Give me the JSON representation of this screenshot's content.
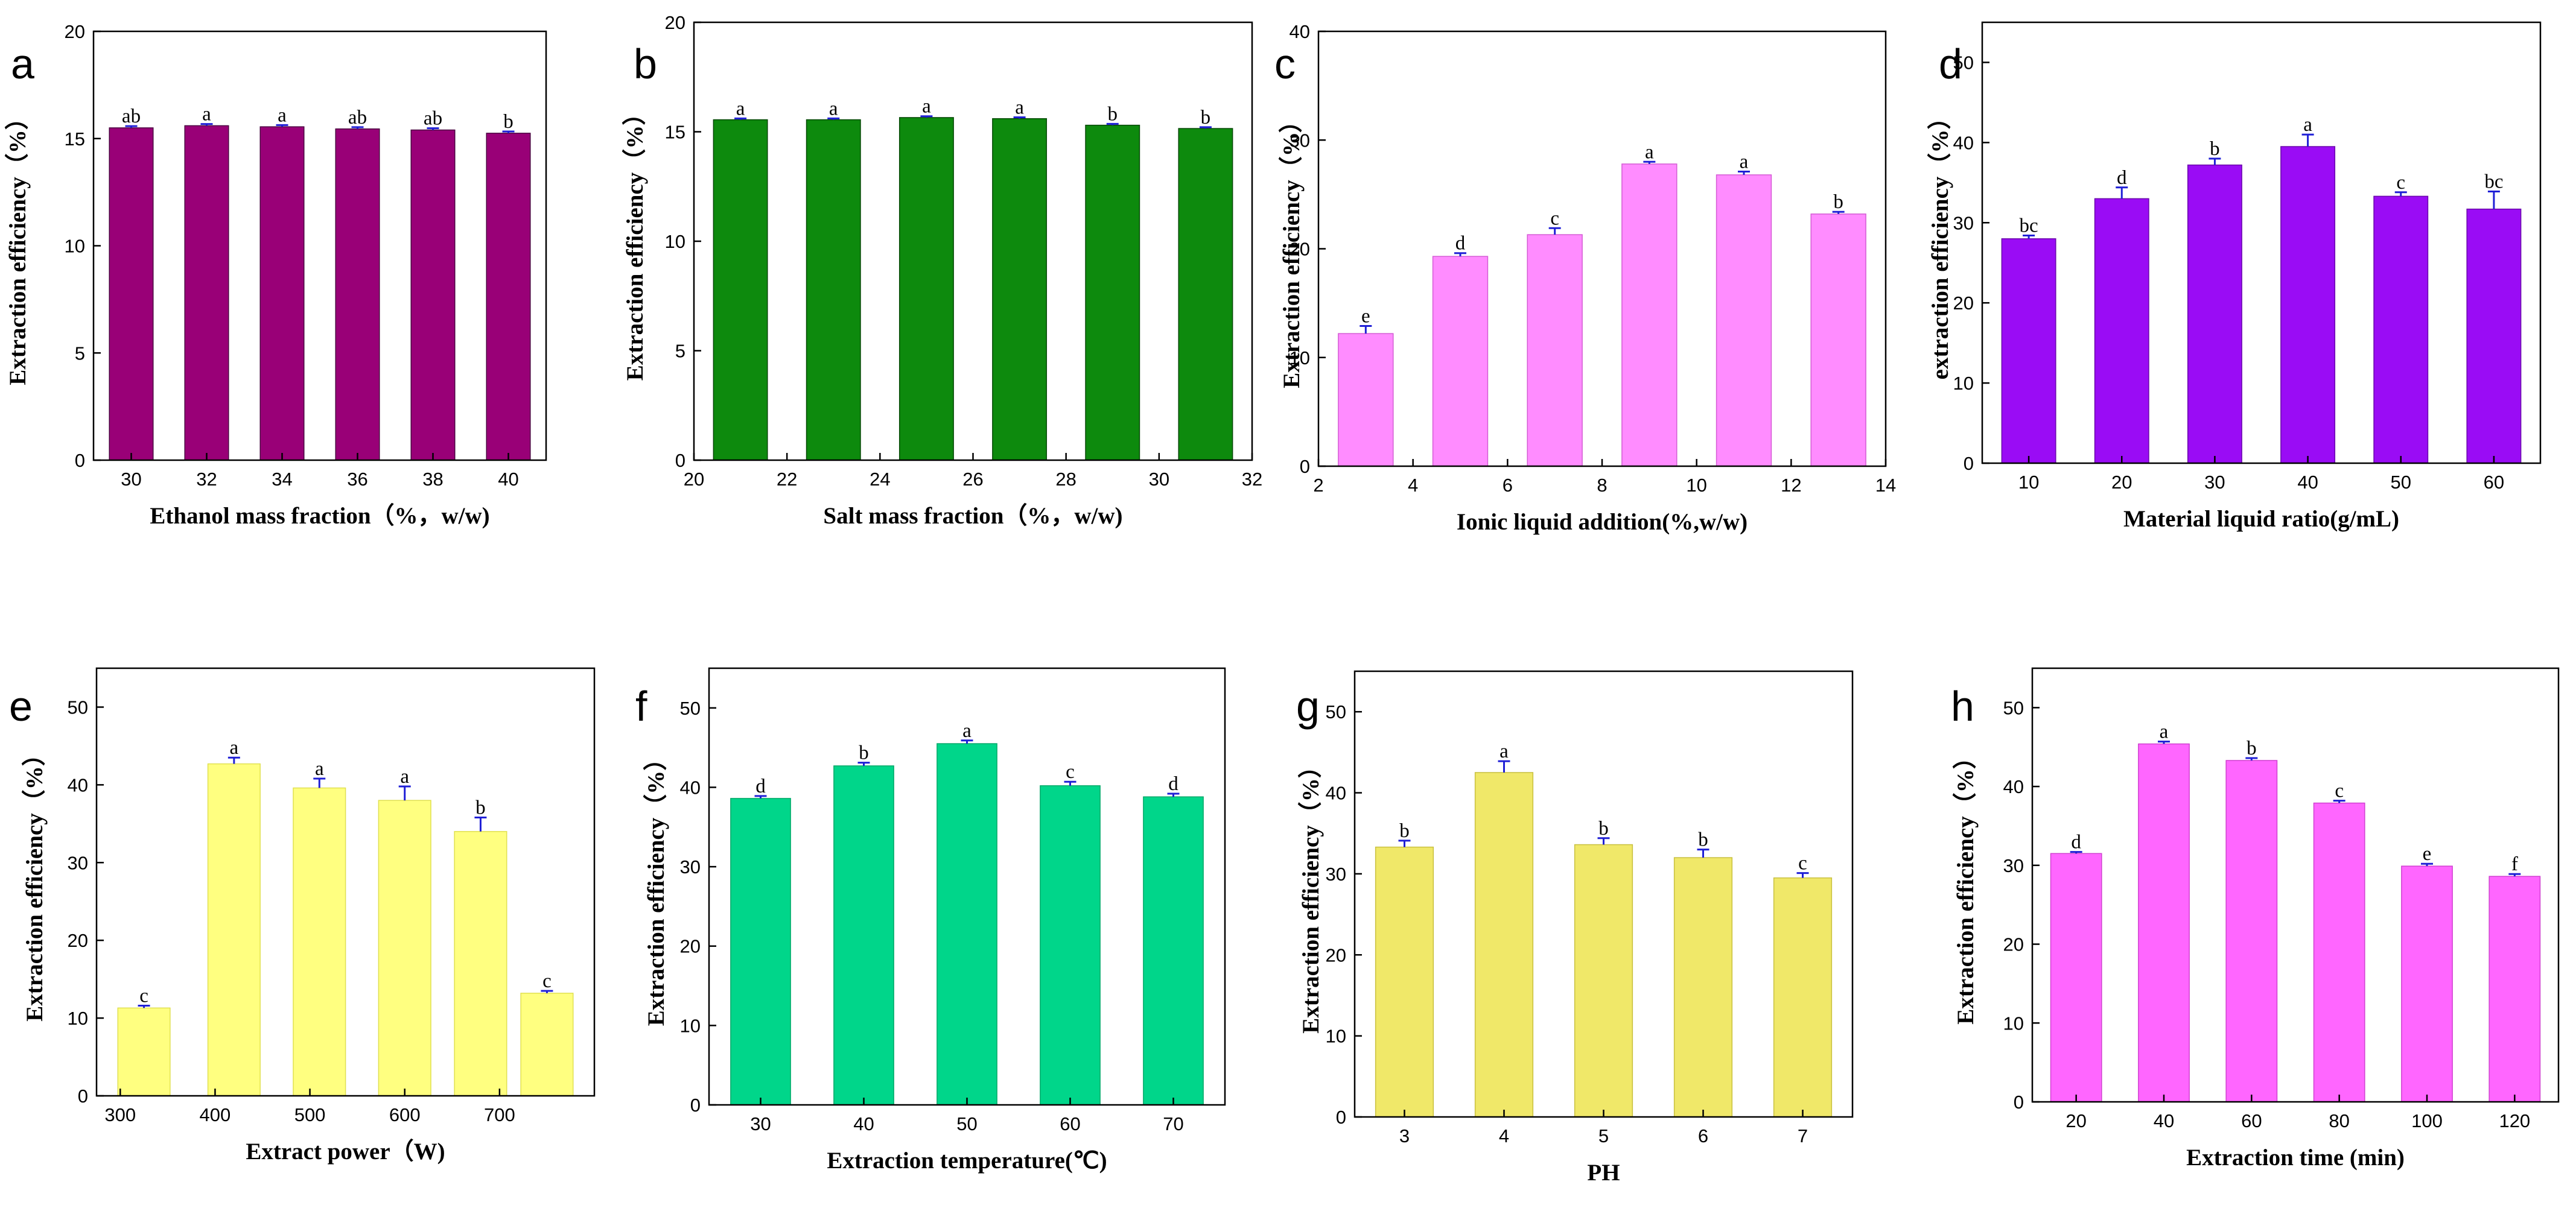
{
  "chart_data": [
    {
      "panel": "a",
      "type": "bar",
      "title": "",
      "xlabel": "Ethanol mass fraction（%，w/w)",
      "ylabel": "Extraction efficiency（%）",
      "x_mode": "categorical",
      "categories": [
        "30",
        "32",
        "34",
        "36",
        "38",
        "40"
      ],
      "values": [
        15.5,
        15.6,
        15.55,
        15.45,
        15.4,
        15.25
      ],
      "errors": [
        0.08,
        0.08,
        0.08,
        0.08,
        0.08,
        0.08
      ],
      "letters": [
        "ab",
        "a",
        "a",
        "ab",
        "ab",
        "b"
      ],
      "ylim": [
        0,
        20
      ],
      "yticks": [
        "0",
        "5",
        "10",
        "15",
        "20"
      ],
      "color": "#990077",
      "edge": "#4a0040"
    },
    {
      "panel": "b",
      "type": "bar",
      "title": "",
      "xlabel": "Salt mass fraction（%，w/w)",
      "ylabel": "Extraction efficiency（%）",
      "x_mode": "numeric",
      "x": [
        21,
        23,
        25,
        27,
        29,
        31
      ],
      "xlim": [
        20,
        32
      ],
      "xticks": [
        "20",
        "22",
        "24",
        "26",
        "28",
        "30",
        "32"
      ],
      "values": [
        15.55,
        15.55,
        15.65,
        15.6,
        15.3,
        15.15
      ],
      "errors": [
        0.06,
        0.06,
        0.06,
        0.06,
        0.06,
        0.06
      ],
      "letters": [
        "a",
        "a",
        "a",
        "a",
        "b",
        "b"
      ],
      "ylim": [
        0,
        20
      ],
      "yticks": [
        "0",
        "5",
        "10",
        "15",
        "20"
      ],
      "color": "#0d8a0d",
      "edge": "#064806"
    },
    {
      "panel": "c",
      "type": "bar",
      "title": "",
      "xlabel": "Ionic liquid addition(%,w/w)",
      "ylabel": "Extraction efficiency（%）",
      "x_mode": "numeric",
      "x": [
        3,
        5,
        7,
        9,
        11,
        13
      ],
      "xlim": [
        2,
        14
      ],
      "xticks": [
        "2",
        "4",
        "6",
        "8",
        "10",
        "12",
        "14"
      ],
      "values": [
        12.2,
        19.3,
        21.3,
        27.8,
        26.8,
        23.2
      ],
      "errors": [
        0.7,
        0.3,
        0.6,
        0.2,
        0.3,
        0.2
      ],
      "letters": [
        "e",
        "d",
        "c",
        "a",
        "a",
        "b"
      ],
      "ylim": [
        0,
        40
      ],
      "yticks": [
        "0",
        "10",
        "20",
        "30",
        "40"
      ],
      "color": "#ff8cff",
      "edge": "#d45cd4"
    },
    {
      "panel": "d",
      "type": "bar",
      "title": "",
      "xlabel": "Material liquid ratio(g/mL)",
      "ylabel": "extraction efficiency（%）",
      "x_mode": "categorical",
      "categories": [
        "10",
        "20",
        "30",
        "40",
        "50",
        "60"
      ],
      "values": [
        28.0,
        33.0,
        37.2,
        39.5,
        33.3,
        31.7
      ],
      "errors": [
        0.4,
        1.4,
        0.8,
        1.5,
        0.5,
        2.2
      ],
      "letters": [
        "bc",
        "d",
        "b",
        "a",
        "c",
        "bc"
      ],
      "ylim": [
        0,
        55
      ],
      "yticks": [
        "0",
        "10",
        "20",
        "30",
        "40",
        "50"
      ],
      "color": "#9a0cf5",
      "edge": "#6a08aa"
    },
    {
      "panel": "e",
      "type": "bar",
      "title": "",
      "xlabel": "Extract power（W)",
      "ylabel": "Extraction efficiency（%）",
      "x_mode": "numeric",
      "x": [
        325,
        420,
        510,
        600,
        680,
        750
      ],
      "xlim": [
        275,
        800
      ],
      "xticks_at": [
        300,
        400,
        500,
        600,
        700
      ],
      "xticks": [
        "300",
        "400",
        "500",
        "600",
        "700"
      ],
      "values": [
        11.3,
        42.7,
        39.6,
        38.0,
        34.0,
        13.2
      ],
      "errors": [
        0.3,
        0.8,
        1.2,
        1.8,
        1.8,
        0.3
      ],
      "letters": [
        "c",
        "a",
        "a",
        "a",
        "b",
        "c"
      ],
      "ylim": [
        0,
        55
      ],
      "yticks": [
        "0",
        "10",
        "20",
        "30",
        "40",
        "50"
      ],
      "color": "#ffff80",
      "edge": "#e0e050"
    },
    {
      "panel": "f",
      "type": "bar",
      "title": "",
      "xlabel": "Extraction temperature(℃)",
      "ylabel": "Extraction efficiency（%）",
      "x_mode": "categorical",
      "categories": [
        "30",
        "40",
        "50",
        "60",
        "70"
      ],
      "values": [
        38.6,
        42.7,
        45.5,
        40.2,
        38.8
      ],
      "errors": [
        0.3,
        0.4,
        0.4,
        0.5,
        0.4
      ],
      "letters": [
        "d",
        "b",
        "a",
        "c",
        "d"
      ],
      "ylim": [
        0,
        55
      ],
      "yticks": [
        "0",
        "10",
        "20",
        "30",
        "40",
        "50"
      ],
      "color": "#00d68a",
      "edge": "#00a868"
    },
    {
      "panel": "g",
      "type": "bar",
      "title": "",
      "xlabel": "PH",
      "ylabel": "Extraction efficiency（%）",
      "x_mode": "categorical",
      "categories": [
        "3",
        "4",
        "5",
        "6",
        "7"
      ],
      "values": [
        33.3,
        42.5,
        33.6,
        32.0,
        29.5
      ],
      "errors": [
        0.8,
        1.4,
        0.8,
        1.0,
        0.6
      ],
      "letters": [
        "b",
        "a",
        "b",
        "b",
        "c"
      ],
      "ylim": [
        0,
        55
      ],
      "yticks": [
        "0",
        "10",
        "20",
        "30",
        "40",
        "50"
      ],
      "color": "#f0e869",
      "edge": "#c8c040"
    },
    {
      "panel": "h",
      "type": "bar",
      "title": "",
      "xlabel": "Extraction time (min)",
      "ylabel": "Extraction efficiency（%）",
      "x_mode": "categorical",
      "categories": [
        "20",
        "40",
        "60",
        "80",
        "100",
        "120"
      ],
      "values": [
        31.5,
        45.4,
        43.3,
        37.9,
        29.9,
        28.6
      ],
      "errors": [
        0.2,
        0.3,
        0.3,
        0.3,
        0.3,
        0.3
      ],
      "letters": [
        "d",
        "a",
        "b",
        "c",
        "e",
        "f"
      ],
      "ylim": [
        0,
        55
      ],
      "yticks": [
        "0",
        "10",
        "20",
        "30",
        "40",
        "50"
      ],
      "color": "#ff66ff",
      "edge": "#d040d0"
    }
  ]
}
